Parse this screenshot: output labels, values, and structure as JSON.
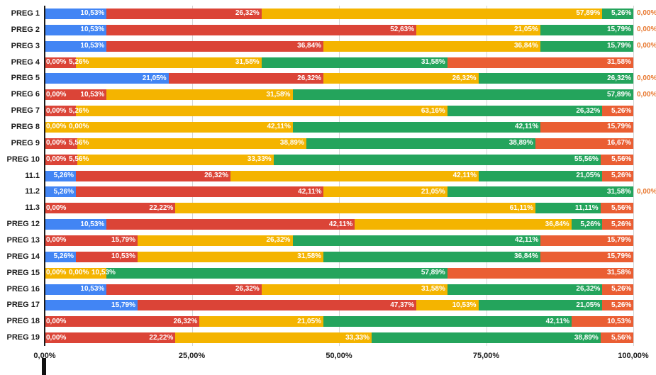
{
  "chart_data": {
    "type": "bar",
    "stacked": true,
    "orientation": "horizontal",
    "title": "",
    "legend": "none",
    "grid": true,
    "background": "#ffffff",
    "x_axis": {
      "ticks": [
        "0,00%",
        "25,00%",
        "50,00%",
        "75,00%",
        "100,00%"
      ],
      "tick_positions": [
        0,
        25,
        50,
        75,
        100
      ],
      "min": 0,
      "max": 100
    },
    "series": [
      {
        "name": "blue",
        "color": "#4285f4"
      },
      {
        "name": "red",
        "color": "#db4437"
      },
      {
        "name": "yellow",
        "color": "#f4b400"
      },
      {
        "name": "green",
        "color": "#24a45c"
      },
      {
        "name": "orange",
        "color": "#ea5e33"
      }
    ],
    "categories": [
      "PREG 1",
      "PREG 2",
      "PREG 3",
      "PREG 4",
      "PREG 5",
      "PREG 6",
      "PREG 7",
      "PREG 8",
      "PREG 9",
      "PREG 10",
      "11.1",
      "11.2",
      "11.3",
      "PREG 12",
      "PREG 13",
      "PREG 14",
      "PREG 15",
      "PREG 16",
      "PREG 17",
      "PREG 18",
      "PREG 19"
    ],
    "rows": [
      {
        "category": "PREG 1",
        "values": [
          10.53,
          26.32,
          57.89,
          5.26,
          0
        ],
        "labels": [
          "10,53%",
          "26,32%",
          "57,89%",
          "5,26%",
          "0,00%"
        ]
      },
      {
        "category": "PREG 2",
        "values": [
          10.53,
          52.63,
          21.05,
          15.79,
          0
        ],
        "labels": [
          "10,53%",
          "52,63%",
          "21,05%",
          "15,79%",
          "0,00%"
        ]
      },
      {
        "category": "PREG 3",
        "values": [
          10.53,
          36.84,
          36.84,
          15.79,
          0
        ],
        "labels": [
          "10,53%",
          "36,84%",
          "36,84%",
          "15,79%",
          "0,00%"
        ]
      },
      {
        "category": "PREG 4",
        "values": [
          0,
          5.26,
          31.58,
          31.58,
          31.58
        ],
        "labels": [
          "0,00%",
          "5,26%",
          "31,58%",
          "31,58%",
          "31,58%"
        ]
      },
      {
        "category": "PREG 5",
        "values": [
          21.05,
          26.32,
          26.32,
          26.32,
          0
        ],
        "labels": [
          "21,05%",
          "26,32%",
          "26,32%",
          "26,32%",
          "0,00%"
        ]
      },
      {
        "category": "PREG 6",
        "values": [
          0,
          10.53,
          31.58,
          57.89,
          0
        ],
        "labels": [
          "0,00%",
          "10,53%",
          "31,58%",
          "57,89%",
          "0,00%"
        ]
      },
      {
        "category": "PREG 7",
        "values": [
          0,
          5.26,
          63.16,
          26.32,
          5.26
        ],
        "labels": [
          "0,00%",
          "5,26%",
          "63,16%",
          "26,32%",
          "5,26%"
        ]
      },
      {
        "category": "PREG 8",
        "values": [
          0,
          0,
          42.11,
          42.11,
          15.79
        ],
        "labels": [
          "0,00%",
          "0,00%",
          "42,11%",
          "42,11%",
          "15,79%"
        ]
      },
      {
        "category": "PREG 9",
        "values": [
          0,
          5.56,
          38.89,
          38.89,
          16.67
        ],
        "labels": [
          "0,00%",
          "5,56%",
          "38,89%",
          "38,89%",
          "16,67%"
        ]
      },
      {
        "category": "PREG 10",
        "values": [
          0,
          5.56,
          33.33,
          55.56,
          5.56
        ],
        "labels": [
          "0,00%",
          "5,56%",
          "33,33%",
          "55,56%",
          "5,56%"
        ]
      },
      {
        "category": "11.1",
        "values": [
          5.26,
          26.32,
          42.11,
          21.05,
          5.26
        ],
        "labels": [
          "5,26%",
          "26,32%",
          "42,11%",
          "21,05%",
          "5,26%"
        ]
      },
      {
        "category": "11.2",
        "values": [
          5.26,
          42.11,
          21.05,
          31.58,
          0
        ],
        "labels": [
          "5,26%",
          "42,11%",
          "21,05%",
          "31,58%",
          "0,00%"
        ]
      },
      {
        "category": "11.3",
        "values": [
          0,
          22.22,
          61.11,
          11.11,
          5.56
        ],
        "labels": [
          "0,00%",
          "22,22%",
          "61,11%",
          "11,11%",
          "5,56%"
        ]
      },
      {
        "category": "PREG 12",
        "values": [
          10.53,
          42.11,
          36.84,
          5.26,
          5.26
        ],
        "labels": [
          "10,53%",
          "42,11%",
          "36,84%",
          "5,26%",
          "5,26%"
        ]
      },
      {
        "category": "PREG 13",
        "values": [
          0,
          15.79,
          26.32,
          42.11,
          15.79
        ],
        "labels": [
          "0,00%",
          "15,79%",
          "26,32%",
          "42,11%",
          "15,79%"
        ]
      },
      {
        "category": "PREG 14",
        "values": [
          5.26,
          10.53,
          31.58,
          36.84,
          15.79
        ],
        "labels": [
          "5,26%",
          "10,53%",
          "31,58%",
          "36,84%",
          "15,79%"
        ]
      },
      {
        "category": "PREG 15",
        "values": [
          0,
          0,
          10.53,
          57.89,
          31.58
        ],
        "labels": [
          "0,00%",
          "0,00%",
          "10,53%",
          "57,89%",
          "31,58%"
        ]
      },
      {
        "category": "PREG 16",
        "values": [
          10.53,
          26.32,
          31.58,
          26.32,
          5.26
        ],
        "labels": [
          "10,53%",
          "26,32%",
          "31,58%",
          "26,32%",
          "5,26%"
        ]
      },
      {
        "category": "PREG 17",
        "values": [
          15.79,
          47.37,
          10.53,
          21.05,
          5.26
        ],
        "labels": [
          "15,79%",
          "47,37%",
          "10,53%",
          "21,05%",
          "5,26%"
        ]
      },
      {
        "category": "PREG 18",
        "values": [
          0,
          26.32,
          21.05,
          42.11,
          10.53
        ],
        "labels": [
          "0,00%",
          "26,32%",
          "21,05%",
          "42,11%",
          "10,53%"
        ]
      },
      {
        "category": "PREG 19",
        "values": [
          0,
          22.22,
          33.33,
          38.89,
          5.56
        ],
        "labels": [
          "0,00%",
          "22,22%",
          "33,33%",
          "38,89%",
          "5,56%"
        ]
      }
    ],
    "outside_label_color": "#e8772e"
  }
}
